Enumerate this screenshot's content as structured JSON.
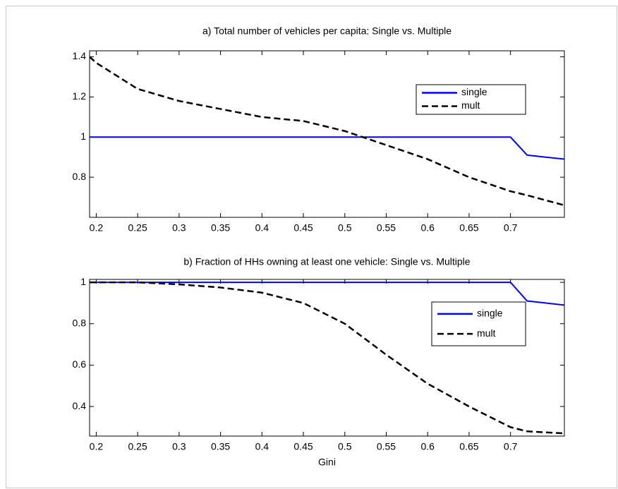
{
  "chart_data": [
    {
      "type": "line",
      "title": "a) Total number of vehicles per capita: Single vs. Multiple",
      "x": [
        0.192,
        0.2,
        0.25,
        0.3,
        0.35,
        0.4,
        0.45,
        0.5,
        0.55,
        0.6,
        0.65,
        0.7,
        0.72,
        0.765
      ],
      "series": [
        {
          "name": "single",
          "color": "#0000ff",
          "dash": "solid",
          "values": [
            1,
            1,
            1,
            1,
            1,
            1,
            1,
            1,
            1,
            1,
            1,
            1,
            0.91,
            0.89
          ]
        },
        {
          "name": "mult",
          "color": "#000000",
          "dash": "dashed",
          "values": [
            1.4,
            1.37,
            1.24,
            1.18,
            1.14,
            1.1,
            1.08,
            1.03,
            0.96,
            0.89,
            0.8,
            0.73,
            0.71,
            0.66
          ]
        }
      ],
      "xlim": [
        0.192,
        0.765
      ],
      "xticks": [
        0.2,
        0.25,
        0.3,
        0.35,
        0.4,
        0.45,
        0.5,
        0.55,
        0.6,
        0.65,
        0.7
      ],
      "ylim": [
        0.6,
        1.43
      ],
      "yticks": [
        0.8,
        1,
        1.2,
        1.4
      ],
      "legend": "upper right"
    },
    {
      "type": "line",
      "title": "b) Fraction of HHs owning at least one vehicle: Single vs. Multiple",
      "x_label": "Gini",
      "x": [
        0.192,
        0.2,
        0.25,
        0.3,
        0.35,
        0.4,
        0.45,
        0.5,
        0.55,
        0.6,
        0.65,
        0.7,
        0.72,
        0.765
      ],
      "series": [
        {
          "name": "single",
          "color": "#0000ff",
          "dash": "solid",
          "values": [
            1,
            1,
            1,
            1,
            1,
            1,
            1,
            1,
            1,
            1,
            1,
            1,
            0.91,
            0.89
          ]
        },
        {
          "name": "mult",
          "color": "#000000",
          "dash": "dashed",
          "values": [
            1,
            1,
            1,
            0.99,
            0.975,
            0.95,
            0.9,
            0.8,
            0.65,
            0.51,
            0.4,
            0.3,
            0.28,
            0.27
          ]
        }
      ],
      "xlim": [
        0.192,
        0.765
      ],
      "xticks": [
        0.2,
        0.25,
        0.3,
        0.35,
        0.4,
        0.45,
        0.5,
        0.55,
        0.6,
        0.65,
        0.7
      ],
      "ylim": [
        0.257,
        1.014
      ],
      "yticks": [
        0.4,
        0.6,
        0.8,
        1
      ],
      "legend": "upper right"
    }
  ]
}
